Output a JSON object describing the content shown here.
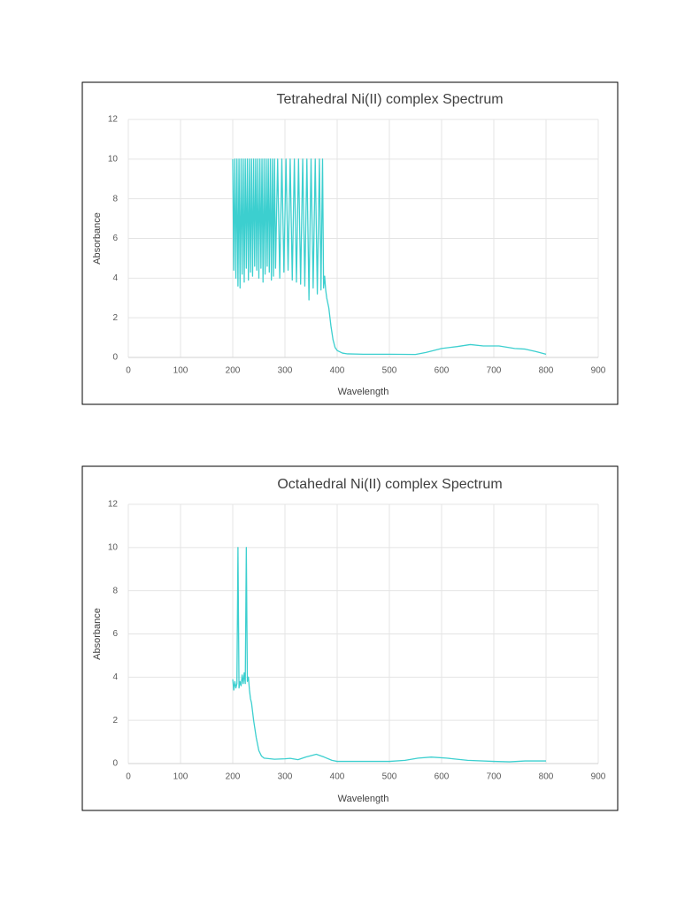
{
  "chart_data": [
    {
      "type": "line",
      "title": "Tetrahedral Ni(II) complex Spectrum",
      "x_label": "Wavelength",
      "y_label": "Absorbance",
      "xlim": [
        0,
        900
      ],
      "xticks": [
        0,
        100,
        200,
        300,
        400,
        500,
        600,
        700,
        800,
        900
      ],
      "ylim": [
        0,
        12
      ],
      "yticks": [
        0,
        2,
        4,
        6,
        8,
        10,
        12
      ],
      "grid": true,
      "series": [
        {
          "name": "Absorbance",
          "color": "#3ccfcf",
          "x": [
            200,
            202,
            204,
            206,
            208,
            210,
            212,
            214,
            216,
            218,
            220,
            222,
            224,
            226,
            228,
            230,
            232,
            234,
            236,
            238,
            240,
            242,
            244,
            246,
            248,
            250,
            252,
            254,
            256,
            258,
            260,
            262,
            264,
            266,
            268,
            270,
            272,
            274,
            276,
            278,
            280,
            282,
            286,
            290,
            294,
            298,
            302,
            306,
            310,
            314,
            318,
            322,
            326,
            330,
            334,
            338,
            342,
            346,
            350,
            354,
            358,
            362,
            366,
            369,
            372,
            374,
            376,
            378,
            380,
            384,
            388,
            392,
            396,
            400,
            410,
            420,
            450,
            500,
            550,
            570,
            600,
            630,
            655,
            680,
            710,
            740,
            760,
            780,
            800
          ],
          "values": [
            10,
            4.4,
            10,
            4.0,
            10,
            3.6,
            10,
            3.5,
            10,
            4.2,
            10,
            3.8,
            10,
            4.5,
            10,
            3.9,
            10,
            4.3,
            10,
            4.1,
            10,
            4.6,
            10,
            4.4,
            10,
            4.0,
            10,
            4.5,
            10,
            3.8,
            10,
            4.2,
            10,
            4.6,
            10,
            4.3,
            10,
            3.9,
            10,
            4.1,
            10,
            4.5,
            10,
            4.0,
            10,
            4.3,
            10,
            4.4,
            10,
            3.9,
            10,
            3.8,
            10,
            3.7,
            10,
            3.6,
            10,
            2.9,
            10,
            3.5,
            10,
            3.2,
            10,
            3.4,
            10,
            3.5,
            4.1,
            3.4,
            3.0,
            2.5,
            1.6,
            0.9,
            0.5,
            0.35,
            0.22,
            0.18,
            0.16,
            0.16,
            0.15,
            0.25,
            0.45,
            0.55,
            0.65,
            0.58,
            0.58,
            0.45,
            0.42,
            0.3,
            0.16
          ]
        }
      ]
    },
    {
      "type": "line",
      "title": "Octahedral Ni(II) complex Spectrum",
      "x_label": "Wavelength",
      "y_label": "Absorbance",
      "xlim": [
        0,
        900
      ],
      "xticks": [
        0,
        100,
        200,
        300,
        400,
        500,
        600,
        700,
        800,
        900
      ],
      "ylim": [
        0,
        12
      ],
      "yticks": [
        0,
        2,
        4,
        6,
        8,
        10,
        12
      ],
      "grid": true,
      "series": [
        {
          "name": "Absorbance",
          "color": "#3ccfcf",
          "x": [
            200,
            202,
            204,
            206,
            208,
            210,
            212,
            214,
            216,
            218,
            220,
            222,
            224,
            226,
            228,
            230,
            232,
            234,
            236,
            240,
            245,
            250,
            255,
            260,
            280,
            300,
            310,
            325,
            340,
            360,
            375,
            390,
            400,
            450,
            500,
            530,
            555,
            580,
            610,
            650,
            700,
            730,
            760,
            800
          ],
          "values": [
            3.9,
            3.4,
            3.8,
            3.5,
            3.7,
            10,
            3.5,
            3.8,
            3.6,
            4.1,
            3.7,
            4.2,
            3.7,
            10,
            3.8,
            4.0,
            3.4,
            3.0,
            2.8,
            2.0,
            1.2,
            0.6,
            0.35,
            0.25,
            0.2,
            0.22,
            0.24,
            0.18,
            0.3,
            0.43,
            0.3,
            0.15,
            0.1,
            0.1,
            0.1,
            0.15,
            0.25,
            0.3,
            0.25,
            0.15,
            0.1,
            0.08,
            0.12,
            0.12
          ]
        }
      ]
    }
  ]
}
